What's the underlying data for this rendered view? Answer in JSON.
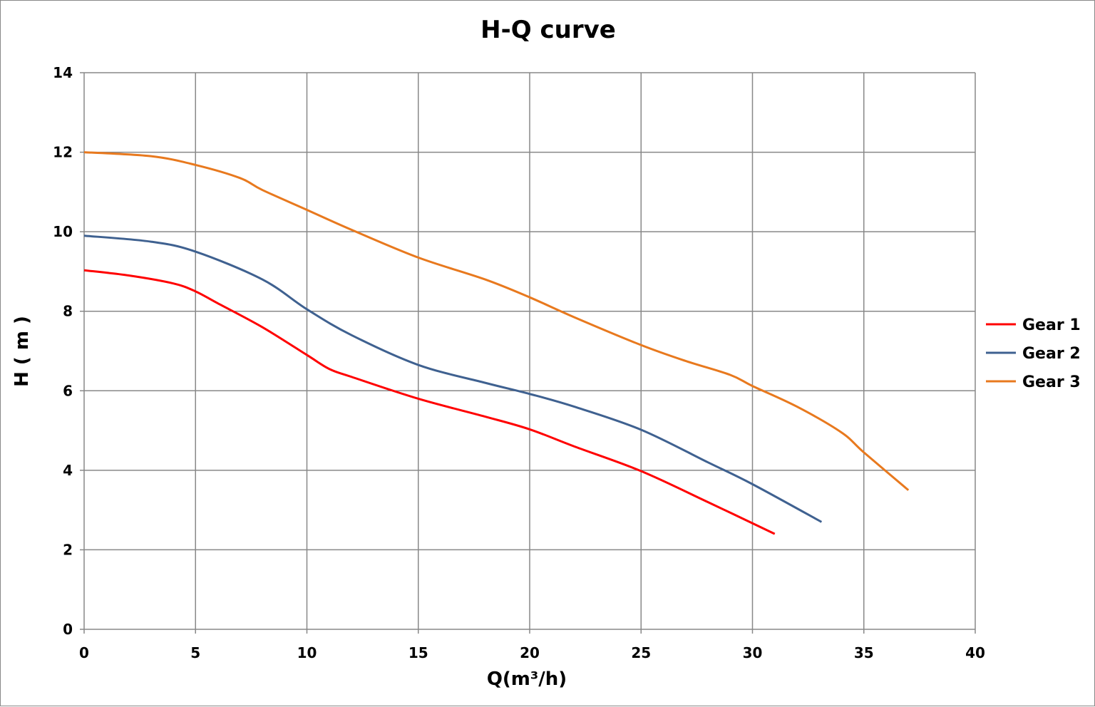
{
  "chart_data": {
    "type": "line",
    "title": "H-Q  curve",
    "xlabel": "Q(m³/h)",
    "ylabel": "H ( m )",
    "xlim": [
      0,
      40
    ],
    "ylim": [
      0,
      14
    ],
    "xticks": [
      "0",
      "5",
      "10",
      "15",
      "20",
      "25",
      "30",
      "35",
      "40"
    ],
    "yticks": [
      "0",
      "2",
      "4",
      "6",
      "8",
      "10",
      "12",
      "14"
    ],
    "grid": true,
    "legend_position": "right",
    "series": [
      {
        "name": "Gear 1",
        "color": "#ff0000",
        "x": [
          0,
          2,
          4,
          5,
          6,
          8,
          10,
          11,
          12,
          15,
          18,
          20,
          22,
          25,
          28,
          31
        ],
        "y": [
          9.03,
          8.9,
          8.7,
          8.5,
          8.2,
          7.6,
          6.9,
          6.55,
          6.35,
          5.8,
          5.35,
          5.03,
          4.6,
          3.98,
          3.2,
          2.4
        ]
      },
      {
        "name": "Gear 2",
        "color": "#3f6190",
        "x": [
          0,
          3,
          5,
          8,
          10,
          12,
          15,
          18,
          20,
          22,
          25,
          28,
          30,
          33.1
        ],
        "y": [
          9.9,
          9.75,
          9.5,
          8.8,
          8.05,
          7.4,
          6.65,
          6.2,
          5.92,
          5.6,
          5.02,
          4.2,
          3.65,
          2.7
        ]
      },
      {
        "name": "Gear 3",
        "color": "#e8791e",
        "x": [
          0,
          3,
          5,
          7,
          8,
          10,
          12,
          15,
          18,
          20,
          22,
          25,
          27,
          29,
          30,
          32,
          34,
          35,
          37
        ],
        "y": [
          12,
          11.9,
          11.68,
          11.35,
          11.05,
          10.55,
          10.05,
          9.35,
          8.8,
          8.35,
          7.85,
          7.15,
          6.75,
          6.4,
          6.12,
          5.6,
          4.95,
          4.45,
          3.5
        ]
      }
    ]
  }
}
